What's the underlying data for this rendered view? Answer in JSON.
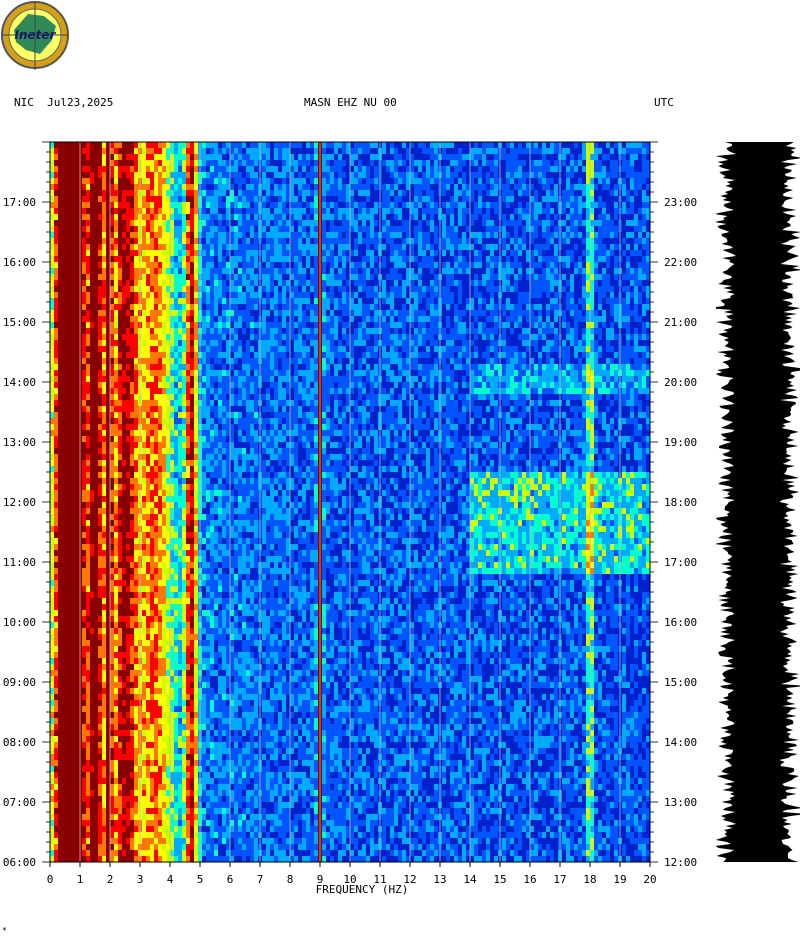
{
  "header": {
    "left": "NIC  Jul23,2025",
    "center": "MASN EHZ NU 00",
    "right": "UTC"
  },
  "logo": {
    "text": "Ineter",
    "colors": {
      "ring": "#d4a017",
      "inner": "#ffff66",
      "land": "#2e8b57"
    }
  },
  "footer_mark": "*",
  "chart_data": {
    "type": "heatmap",
    "xlabel": "FREQUENCY (HZ)",
    "xlim": [
      0,
      20
    ],
    "x_ticks": [
      "0",
      "1",
      "2",
      "3",
      "4",
      "5",
      "6",
      "7",
      "8",
      "9",
      "10",
      "11",
      "12",
      "13",
      "14",
      "15",
      "16",
      "17",
      "18",
      "19",
      "20"
    ],
    "left_time_ticks": [
      "06:00",
      "07:00",
      "08:00",
      "09:00",
      "10:00",
      "11:00",
      "12:00",
      "13:00",
      "14:00",
      "15:00",
      "16:00",
      "17:00"
    ],
    "right_time_ticks": [
      "12:00",
      "13:00",
      "14:00",
      "15:00",
      "16:00",
      "17:00",
      "18:00",
      "19:00",
      "20:00",
      "21:00",
      "22:00",
      "23:00"
    ],
    "time_range_local_hours": [
      6,
      18
    ],
    "colormap": [
      "#000088",
      "#0022cc",
      "#0055ff",
      "#00aaff",
      "#00ffcc",
      "#ccff00",
      "#ffff00",
      "#ff7700",
      "#ff0000",
      "#880000"
    ],
    "dominant_bands_hz": [
      {
        "hz": 0.6,
        "width": 0.6,
        "intensity": 1.0
      },
      {
        "hz": 0.95,
        "width": 0.2,
        "intensity": 0.8
      },
      {
        "hz": 1.5,
        "width": 0.4,
        "intensity": 0.7
      },
      {
        "hz": 1.95,
        "width": 0.15,
        "intensity": 0.85
      },
      {
        "hz": 2.5,
        "width": 0.6,
        "intensity": 0.6
      },
      {
        "hz": 3.5,
        "width": 0.8,
        "intensity": 0.45
      },
      {
        "hz": 4.7,
        "width": 0.3,
        "intensity": 0.6
      },
      {
        "hz": 9.0,
        "width": 0.12,
        "intensity": 0.9
      },
      {
        "hz": 18.0,
        "width": 0.15,
        "intensity": 0.35
      }
    ],
    "grid": true
  }
}
